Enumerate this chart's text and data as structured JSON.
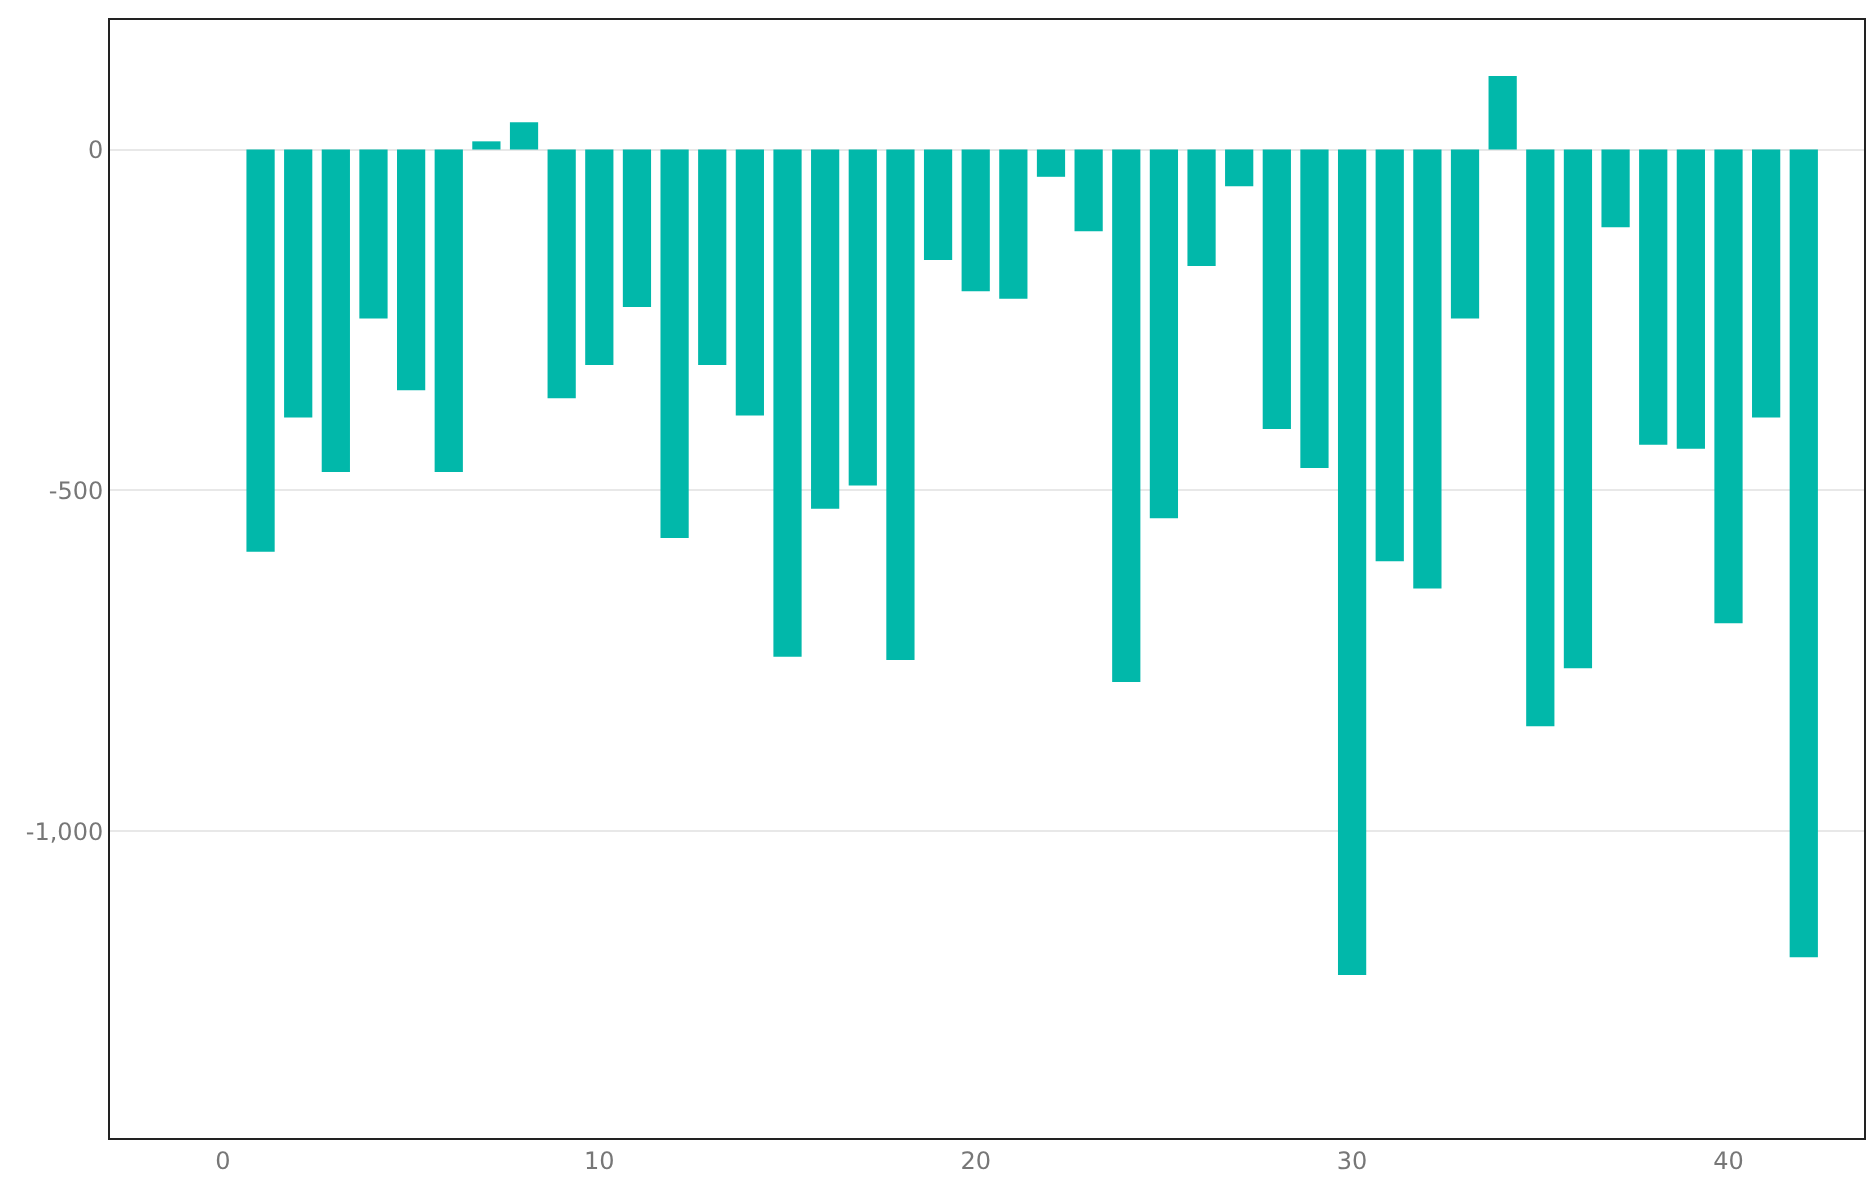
{
  "chart_data": {
    "type": "bar",
    "color": "#01b8aa",
    "x": [
      1,
      2,
      3,
      4,
      5,
      6,
      7,
      8,
      9,
      10,
      11,
      12,
      13,
      14,
      15,
      16,
      17,
      18,
      19,
      20,
      21,
      22,
      23,
      24,
      25,
      26,
      27,
      28,
      29,
      30,
      31,
      32,
      33,
      34,
      35,
      36,
      37,
      38,
      39,
      40,
      41,
      42
    ],
    "values": [
      -590,
      -393,
      -473,
      -248,
      -353,
      -473,
      12,
      40,
      -365,
      -316,
      -231,
      -570,
      -316,
      -390,
      -744,
      -527,
      -493,
      -749,
      -162,
      -208,
      -219,
      -40,
      -120,
      -781,
      -541,
      -171,
      -54,
      -410,
      -467,
      -1211,
      -604,
      -644,
      -248,
      108,
      -846,
      -761,
      -114,
      -433,
      -439,
      -695,
      -393,
      -1185
    ],
    "xlim": [
      -3,
      43.6
    ],
    "xticks": [
      0,
      10,
      20,
      30,
      40
    ],
    "ylim": [
      -1450,
      190
    ],
    "yticks": [
      0,
      {
        "value": -500,
        "label": "-500"
      },
      {
        "value": -1000,
        "label": "-1,000"
      }
    ],
    "grid": "y"
  }
}
